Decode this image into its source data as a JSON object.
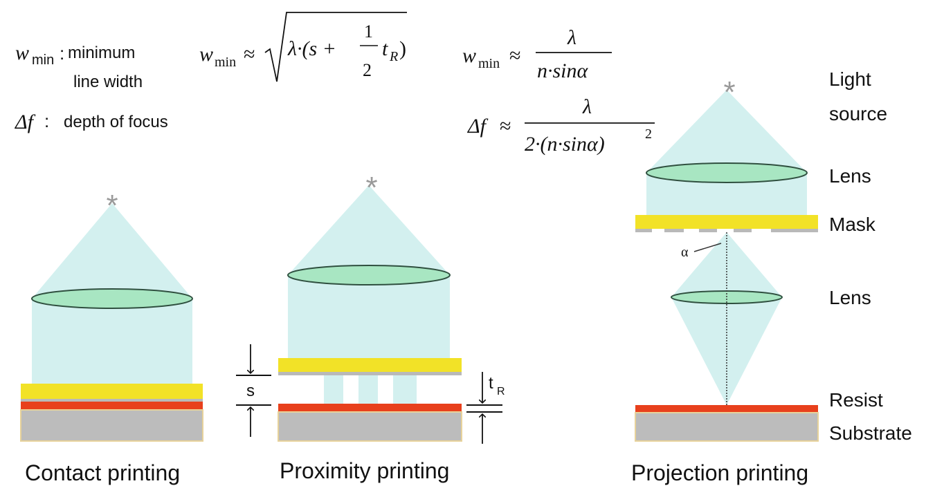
{
  "legend": {
    "wmin_symbol": "w",
    "wmin_subscript": "min",
    "wmin_colon": ":",
    "wmin_desc_line1": "minimum",
    "wmin_desc_line2": "line width",
    "df_symbol": "Δf",
    "df_colon": ":",
    "df_desc": "depth of focus"
  },
  "formulas": {
    "proximity": {
      "lhs": "w",
      "lhs_sub": "min",
      "approx": "≈",
      "radicand_start": "λ·(s +",
      "frac_num": "1",
      "frac_den": "2",
      "tail": "t",
      "tail_sub": "R",
      "close": ")"
    },
    "projection_width": {
      "lhs": "w",
      "lhs_sub": "min",
      "approx": "≈",
      "num": "λ",
      "den": "n·sinα"
    },
    "projection_focus": {
      "lhs": "Δf",
      "approx": "≈",
      "num": "λ",
      "den": "2·(n·sinα)",
      "den_exp": "2"
    }
  },
  "light_source_symbol": "*",
  "labels": {
    "contact": "Contact printing",
    "proximity": "Proximity printing",
    "projection": "Projection printing",
    "s": "s",
    "t": "t",
    "t_sub": "R",
    "alpha": "α"
  },
  "side_labels": {
    "light_line1": "Light",
    "light_line2": "source",
    "lens_upper": "Lens",
    "mask": "Mask",
    "lens_lower": "Lens",
    "resist": "Resist",
    "substrate": "Substrate"
  },
  "colors": {
    "light": "#d3f0ef",
    "lens_fill": "#a8e6c2",
    "lens_stroke": "#2f4f3f",
    "mask": "#f2e227",
    "mask_gray": "#b9b9b9",
    "resist": "#e8401c",
    "substrate": "#bcbcbc",
    "substrate_border": "#e7d29a",
    "star": "#9a9a9a",
    "text": "#111111"
  }
}
